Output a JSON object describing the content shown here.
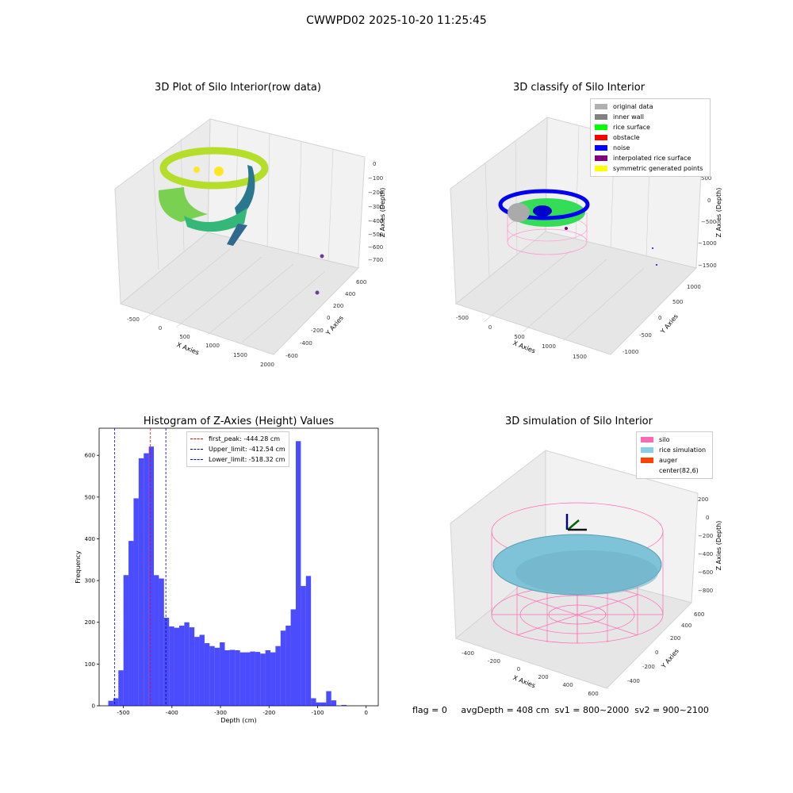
{
  "suptitle": "CWWPD02 2025-10-20 11:25:45",
  "panels": {
    "raw": {
      "title": "3D Plot of Silo Interior(row data)",
      "xlabel": "X Axies",
      "ylabel": "Y Axies",
      "zlabel": "Z Axies (Depth)",
      "xticks": [
        "-500",
        "0",
        "500",
        "1000",
        "1500",
        "2000"
      ],
      "yticks": [
        "-600",
        "-400",
        "-200",
        "0",
        "200",
        "400",
        "600"
      ],
      "zticks": [
        "0",
        "−100",
        "−200",
        "−300",
        "−400",
        "−500",
        "−600",
        "−700"
      ]
    },
    "classify": {
      "title": "3D classify of Silo Interior",
      "xlabel": "X Axies",
      "ylabel": "Y Axies",
      "zlabel": "Z Axies (Depth)",
      "xticks": [
        "-500",
        "0",
        "500",
        "1000",
        "1500"
      ],
      "yticks": [
        "-1000",
        "-500",
        "0",
        "500",
        "1000"
      ],
      "zticks": [
        "500",
        "0",
        "−500",
        "−1000",
        "−1500"
      ],
      "legend": [
        {
          "label": "original data",
          "color": "#b0b0b0"
        },
        {
          "label": "inner wall",
          "color": "#808080"
        },
        {
          "label": "rice surface",
          "color": "#00ff00"
        },
        {
          "label": "obstacle",
          "color": "#ff0000"
        },
        {
          "label": "noise",
          "color": "#0000ff"
        },
        {
          "label": "interpolated rice surface",
          "color": "#800080"
        },
        {
          "label": "symmetric generated points",
          "color": "#ffff00"
        }
      ]
    },
    "simulation": {
      "title": "3D simulation of Silo Interior",
      "xlabel": "X Axies",
      "ylabel": "Y Axies",
      "zlabel": "Z Axies (Depth)",
      "xticks": [
        "-400",
        "-200",
        "0",
        "200",
        "400",
        "600"
      ],
      "yticks": [
        "-400",
        "-200",
        "0",
        "200",
        "400",
        "600"
      ],
      "zticks": [
        "200",
        "0",
        "−200",
        "−400",
        "−600",
        "−800"
      ],
      "legend": [
        {
          "label": "silo",
          "color": "#ff69b4"
        },
        {
          "label": "rice simulation",
          "color": "#87ceeb"
        },
        {
          "label": "auger",
          "color": "#ff4500"
        },
        {
          "label": "center(82,6)",
          "color": "#ffffff"
        }
      ]
    }
  },
  "footer": {
    "flag": "flag = 0",
    "avg": "avgDepth = 408 cm",
    "sv1": "sv1 = 800~2000",
    "sv2": "sv2 = 900~2100"
  },
  "chart_data": [
    {
      "type": "scatter",
      "title": "3D Plot of Silo Interior(row data)",
      "xlabel": "X Axies",
      "ylabel": "Y Axies",
      "zlabel": "Z Axies (Depth)",
      "xlim": [
        -700,
        2000
      ],
      "ylim": [
        -650,
        650
      ],
      "zlim": [
        -750,
        30
      ],
      "colormap": "viridis"
    },
    {
      "type": "scatter",
      "title": "3D classify of Silo Interior",
      "xlabel": "X Axies",
      "ylabel": "Y Axies",
      "zlabel": "Z Axies (Depth)",
      "xlim": [
        -650,
        1750
      ],
      "ylim": [
        -1150,
        1150
      ],
      "zlim": [
        -1600,
        550
      ],
      "legend_position": "upper right"
    },
    {
      "type": "bar",
      "title": "Histogram of Z-Axies (Height) Values",
      "xlabel": "Depth (cm)",
      "ylabel": "Frequency",
      "xlim": [
        -550,
        25
      ],
      "ylim": [
        0,
        665
      ],
      "xticks": [
        -500,
        -400,
        -300,
        -200,
        -100,
        0
      ],
      "yticks": [
        0,
        100,
        200,
        300,
        400,
        500,
        600
      ],
      "bar_color": "#0000ff",
      "bin_width": 10.44,
      "bin_start": -531.2,
      "values": [
        12,
        18,
        85,
        313,
        395,
        497,
        593,
        605,
        621,
        313,
        305,
        211,
        190,
        187,
        192,
        200,
        188,
        165,
        170,
        150,
        143,
        139,
        152,
        133,
        134,
        133,
        128,
        128,
        130,
        129,
        125,
        133,
        128,
        143,
        180,
        192,
        231,
        634,
        287,
        311,
        18,
        8,
        8,
        35,
        13,
        0,
        2
      ],
      "lines": [
        {
          "label": "first_peak: -444.28 cm",
          "x": -444.28,
          "color": "#ff0000"
        },
        {
          "label": "Upper_limit: -412.54 cm",
          "x": -412.54,
          "color": "#00008b"
        },
        {
          "label": "Lower_limit: -518.32 cm",
          "x": -518.32,
          "color": "#0000ff"
        }
      ],
      "legend_position": "upper center"
    },
    {
      "type": "scatter",
      "title": "3D simulation of Silo Interior",
      "xlabel": "X Axies",
      "ylabel": "Y Axies",
      "zlabel": "Z Axies (Depth)",
      "xlim": [
        -520,
        650
      ],
      "ylim": [
        -520,
        650
      ],
      "zlim": [
        -950,
        280
      ],
      "legend_position": "upper right"
    }
  ]
}
